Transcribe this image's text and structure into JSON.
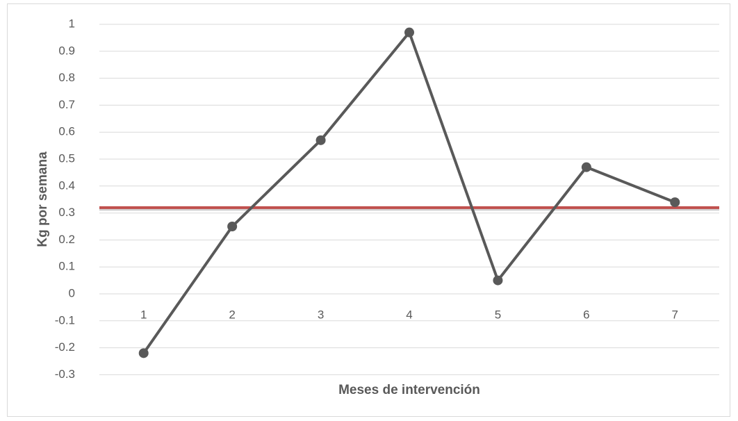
{
  "chart_data": {
    "type": "line",
    "x_label": "Meses de intervención",
    "y_label": "Kg por semana",
    "categories": [
      "1",
      "2",
      "3",
      "4",
      "5",
      "6",
      "7"
    ],
    "series": [
      {
        "color": "#595959",
        "values": [
          -0.22,
          0.25,
          0.57,
          0.97,
          0.05,
          0.47,
          0.34
        ]
      }
    ],
    "reference_line": {
      "value": 0.32,
      "color": "#c0504d"
    },
    "ylim": [
      -0.3,
      1
    ],
    "yticks": [
      -0.3,
      -0.2,
      -0.1,
      0,
      0.1,
      0.2,
      0.3,
      0.4,
      0.5,
      0.6,
      0.7,
      0.8,
      0.9,
      1
    ],
    "grid": true
  }
}
